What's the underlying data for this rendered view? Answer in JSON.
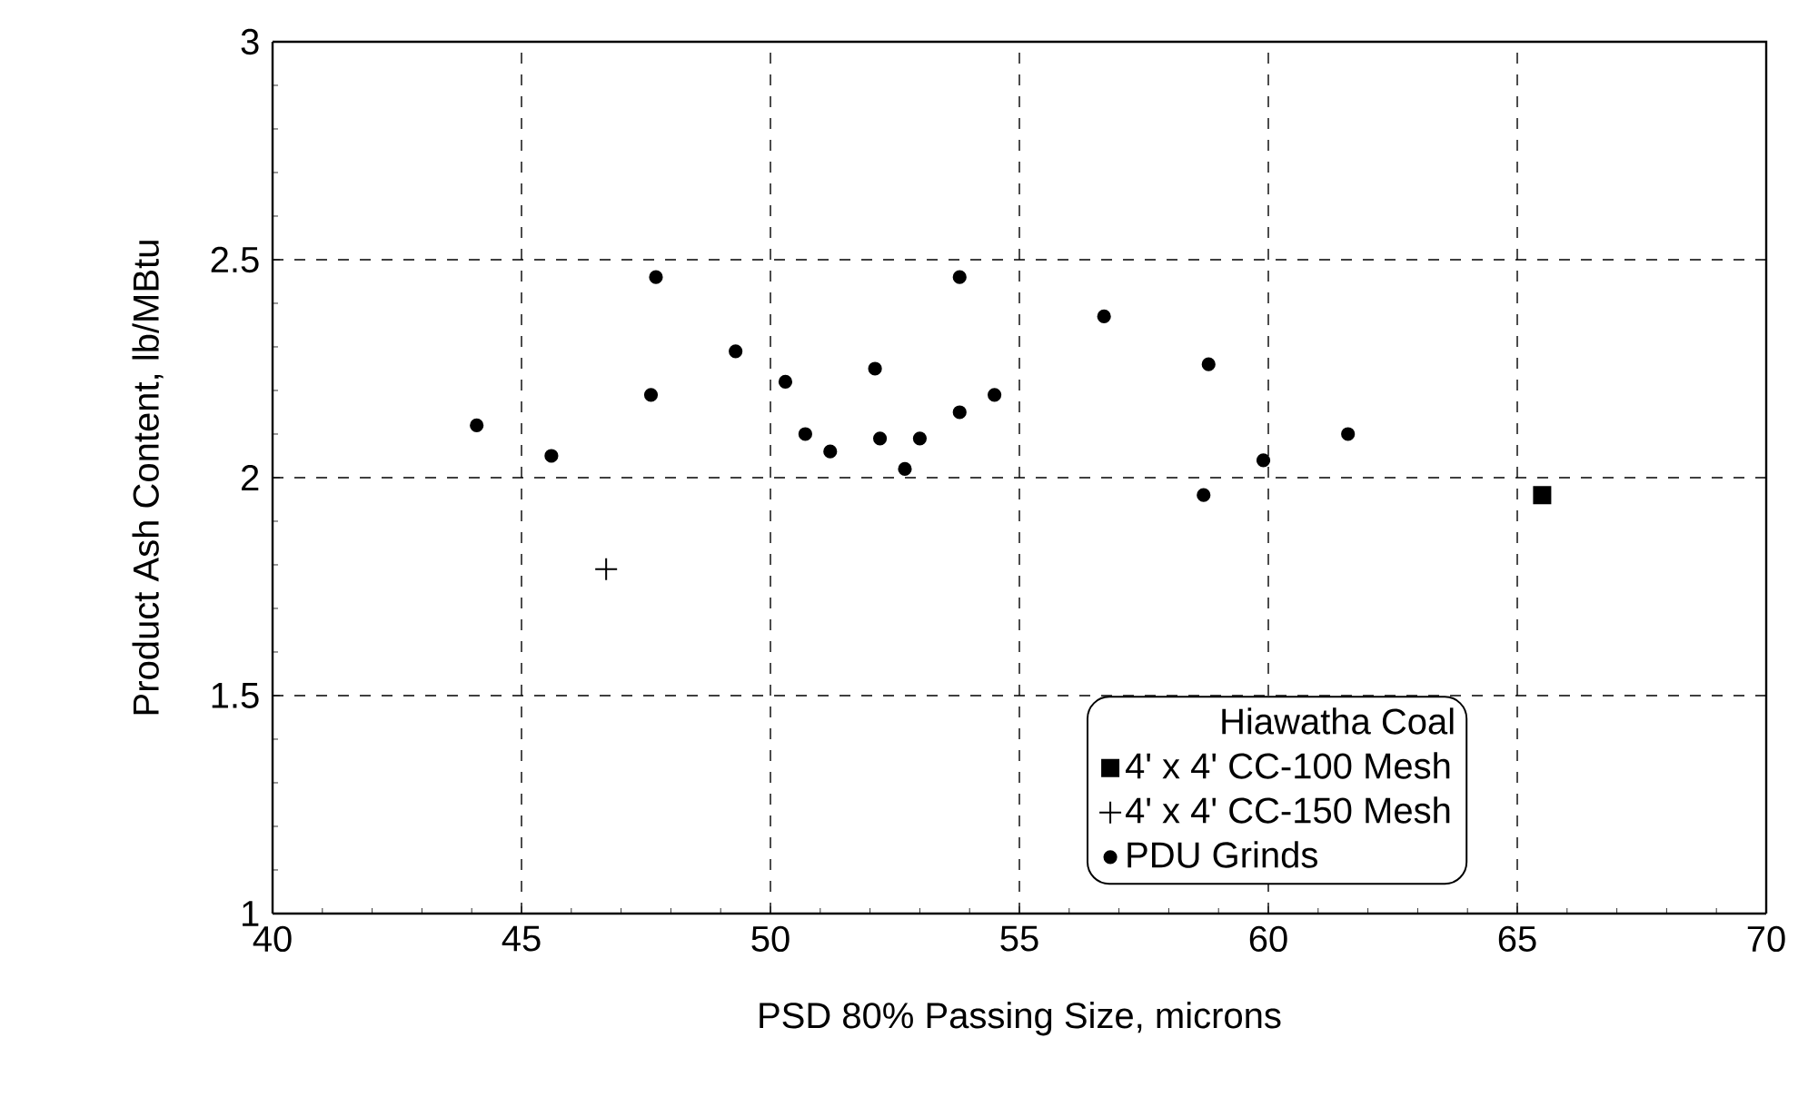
{
  "chart_data": {
    "type": "scatter",
    "xlabel": "PSD 80% Passing Size, microns",
    "ylabel": "Product Ash Content, lb/MBtu",
    "legend_title": "Hiawatha Coal",
    "xlim": [
      40,
      70
    ],
    "xticks": [
      40,
      45,
      50,
      55,
      60,
      65,
      70
    ],
    "ylim": [
      1,
      3
    ],
    "yticks": [
      1,
      1.5,
      2,
      2.5,
      3
    ],
    "grid": true,
    "legend": "bottom right",
    "series": [
      {
        "name": "4' x 4' CC-100 Mesh",
        "color": "#000000",
        "marker": "square",
        "x": [
          65.5
        ],
        "values": [
          1.96
        ]
      },
      {
        "name": "4' x 4' CC-150 Mesh",
        "color": "#000000",
        "marker": "cross",
        "x": [
          46.7
        ],
        "values": [
          1.79
        ]
      },
      {
        "name": "PDU Grinds",
        "color": "#000000",
        "marker": "circle",
        "x": [
          44.1,
          45.6,
          47.6,
          47.7,
          49.3,
          50.3,
          50.7,
          51.2,
          52.1,
          52.2,
          52.7,
          53.0,
          53.8,
          53.8,
          54.5,
          56.7,
          58.8,
          58.7,
          59.9,
          61.6
        ],
        "values": [
          2.12,
          2.05,
          2.19,
          2.46,
          2.29,
          2.22,
          2.1,
          2.06,
          2.25,
          2.09,
          2.02,
          2.09,
          2.15,
          2.46,
          2.19,
          2.37,
          2.26,
          1.96,
          2.04,
          2.1
        ]
      }
    ]
  }
}
